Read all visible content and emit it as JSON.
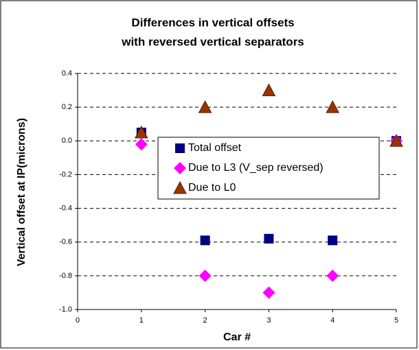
{
  "chart_data": {
    "type": "scatter",
    "title": [
      "Differences in vertical offsets",
      "with reversed vertical separators"
    ],
    "xlabel": "Car #",
    "ylabel": "Vertical offset at IP(microns)",
    "xlim": [
      0,
      5
    ],
    "xticks": [
      0,
      1,
      2,
      3,
      4,
      5
    ],
    "ylim": [
      -1,
      0.4
    ],
    "yticks": [
      0.4,
      0.2,
      {
        "value": 0,
        "label": "0.0"
      },
      -0.2,
      -0.4,
      -0.6,
      -0.8,
      {
        "value": -1,
        "label": "-1.0"
      }
    ],
    "grid": true,
    "legend": "center",
    "series": [
      {
        "name": "Total offset",
        "color": "#000080",
        "marker": "square",
        "x": [
          1,
          2,
          3,
          4,
          5
        ],
        "values": [
          0.05,
          -0.59,
          -0.58,
          -0.59,
          0.0
        ]
      },
      {
        "name": "Due to L3 (V_sep reversed)",
        "color": "#ff00ff",
        "marker": "diamond",
        "x": [
          1,
          2,
          3,
          4,
          5
        ],
        "values": [
          -0.02,
          -0.8,
          -0.9,
          -0.8,
          0.0
        ]
      },
      {
        "name": "Due to L0",
        "color": "#993300",
        "marker": "triangle",
        "x": [
          1,
          2,
          3,
          4,
          5
        ],
        "values": [
          0.05,
          0.2,
          0.3,
          0.2,
          0.0
        ]
      }
    ]
  }
}
